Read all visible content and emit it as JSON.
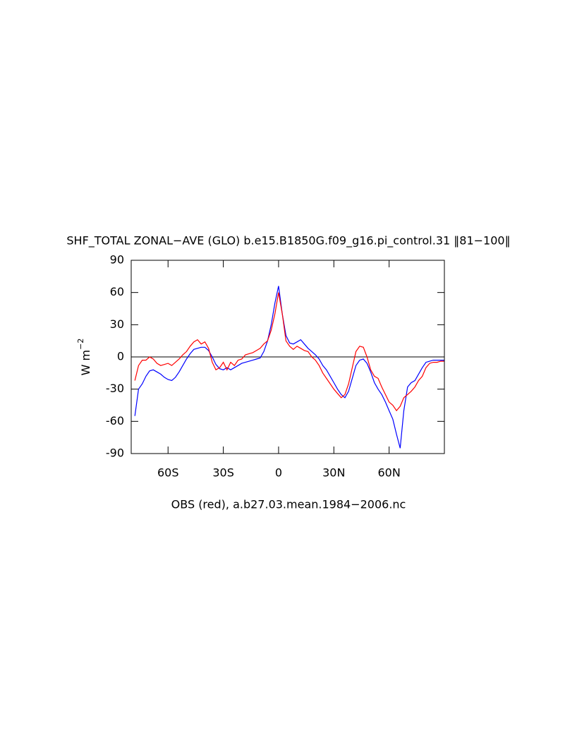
{
  "chart_data": {
    "type": "line",
    "title": "SHF_TOTAL ZONAL−AVE (GLO) b.e15.B1850G.f09_g16.pi_control.31 ‖81−100‖",
    "xlabel": "OBS (red), a.b27.03.mean.1984−2006.nc",
    "ylabel": "W m",
    "ylabel_exponent": "−2",
    "xlim": [
      -80,
      90
    ],
    "ylim": [
      -90,
      90
    ],
    "xticks": [
      {
        "value": -60,
        "label": "60S"
      },
      {
        "value": -30,
        "label": "30S"
      },
      0,
      {
        "value": 30,
        "label": "30N"
      },
      {
        "value": 60,
        "label": "60N"
      }
    ],
    "yticks": [
      -90,
      -60,
      -30,
      0,
      30,
      60,
      90
    ],
    "zero_line": true,
    "x": [
      -78,
      -76,
      -74,
      -72,
      -70,
      -68,
      -66,
      -64,
      -62,
      -60,
      -58,
      -56,
      -54,
      -52,
      -50,
      -48,
      -46,
      -44,
      -42,
      -40,
      -38,
      -36,
      -34,
      -32,
      -30,
      -28,
      -26,
      -24,
      -22,
      -20,
      -18,
      -16,
      -14,
      -12,
      -10,
      -8,
      -6,
      -4,
      -2,
      0,
      2,
      4,
      6,
      8,
      10,
      12,
      14,
      16,
      18,
      20,
      22,
      24,
      26,
      28,
      30,
      32,
      34,
      36,
      38,
      40,
      42,
      44,
      46,
      48,
      50,
      52,
      54,
      56,
      58,
      60,
      62,
      64,
      66,
      68,
      70,
      72,
      74,
      76,
      78,
      80,
      82,
      84,
      86,
      88,
      90
    ],
    "series": [
      {
        "color": "#0000ff",
        "values": [
          -55,
          -30,
          -25,
          -18,
          -13,
          -12,
          -14,
          -16,
          -19,
          -21,
          -22,
          -19,
          -14,
          -8,
          -2,
          3,
          7,
          8,
          9,
          9,
          6,
          0,
          -7,
          -11,
          -12,
          -10,
          -12,
          -10,
          -8,
          -6,
          -5,
          -4,
          -3,
          -2,
          -1,
          5,
          15,
          30,
          50,
          66,
          40,
          20,
          13,
          12,
          14,
          16,
          12,
          8,
          5,
          2,
          -2,
          -8,
          -12,
          -18,
          -24,
          -30,
          -35,
          -38,
          -32,
          -20,
          -8,
          -3,
          -2,
          -6,
          -14,
          -24,
          -30,
          -35,
          -42,
          -50,
          -58,
          -72,
          -85,
          -50,
          -28,
          -24,
          -22,
          -16,
          -10,
          -5,
          -4,
          -3,
          -3,
          -3,
          -3
        ]
      },
      {
        "color": "#ff0000",
        "values": [
          -22,
          -8,
          -3,
          -3,
          0,
          -2,
          -6,
          -8,
          -7,
          -6,
          -8,
          -5,
          -2,
          2,
          5,
          10,
          14,
          16,
          12,
          14,
          8,
          -5,
          -12,
          -10,
          -5,
          -12,
          -5,
          -8,
          -3,
          -2,
          2,
          3,
          4,
          6,
          8,
          12,
          15,
          25,
          40,
          60,
          40,
          15,
          10,
          7,
          10,
          8,
          6,
          5,
          0,
          -3,
          -8,
          -15,
          -20,
          -25,
          -30,
          -34,
          -38,
          -35,
          -25,
          -10,
          5,
          10,
          9,
          0,
          -12,
          -18,
          -20,
          -28,
          -35,
          -42,
          -45,
          -50,
          -46,
          -38,
          -35,
          -32,
          -28,
          -22,
          -18,
          -10,
          -6,
          -5,
          -5,
          -4,
          -4
        ]
      }
    ]
  }
}
